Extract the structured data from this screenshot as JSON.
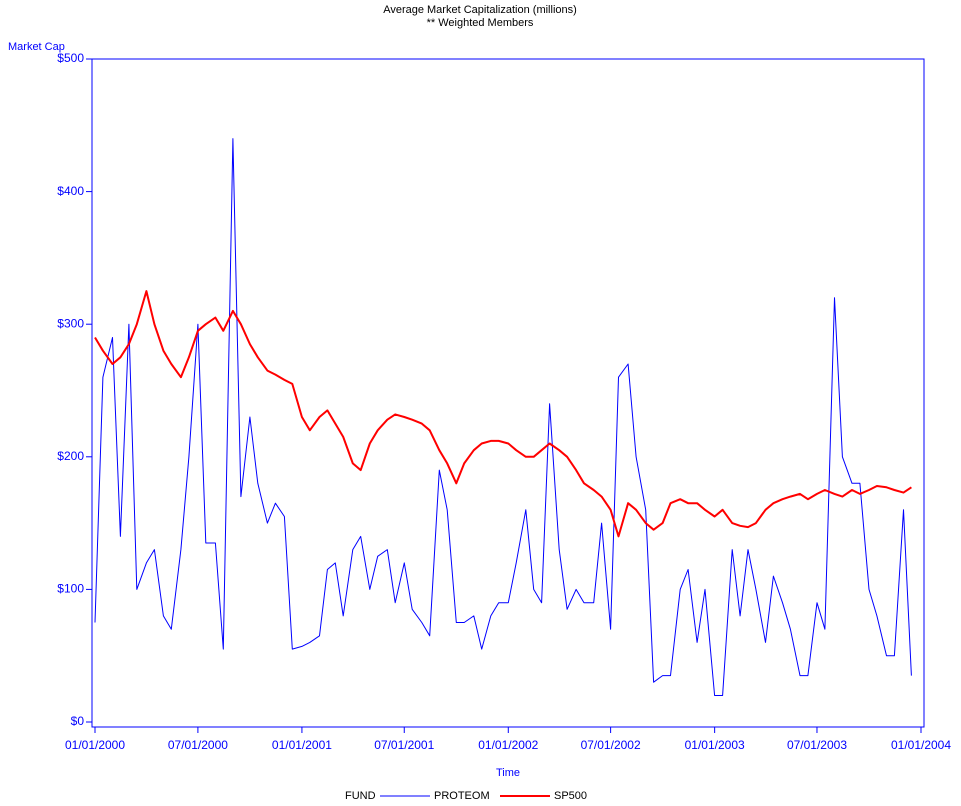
{
  "chart_data": {
    "type": "line",
    "title": "Average Market Capitalization (millions)",
    "subtitle": "** Weighted Members",
    "y_label": "Market Cap",
    "x_label": "Time",
    "legend_title": "FUND",
    "x": [
      "01/01/2000",
      "01/15/2000",
      "02/01/2000",
      "02/15/2000",
      "03/01/2000",
      "03/15/2000",
      "04/01/2000",
      "04/15/2000",
      "05/01/2000",
      "05/15/2000",
      "06/01/2000",
      "06/15/2000",
      "07/01/2000",
      "07/15/2000",
      "08/01/2000",
      "08/15/2000",
      "09/01/2000",
      "09/15/2000",
      "10/01/2000",
      "10/15/2000",
      "11/01/2000",
      "11/15/2000",
      "12/01/2000",
      "12/15/2000",
      "01/01/2001",
      "01/15/2001",
      "02/01/2001",
      "02/15/2001",
      "03/01/2001",
      "03/15/2001",
      "04/01/2001",
      "04/15/2001",
      "05/01/2001",
      "05/15/2001",
      "06/01/2001",
      "06/15/2001",
      "07/01/2001",
      "07/15/2001",
      "08/01/2001",
      "08/15/2001",
      "09/01/2001",
      "09/15/2001",
      "10/01/2001",
      "10/15/2001",
      "11/01/2001",
      "11/15/2001",
      "12/01/2001",
      "12/15/2001",
      "01/01/2002",
      "01/15/2002",
      "02/01/2002",
      "02/15/2002",
      "03/01/2002",
      "03/15/2002",
      "04/01/2002",
      "04/15/2002",
      "05/01/2002",
      "05/15/2002",
      "06/01/2002",
      "06/15/2002",
      "07/01/2002",
      "07/15/2002",
      "08/01/2002",
      "08/15/2002",
      "09/01/2002",
      "09/15/2002",
      "10/01/2002",
      "10/15/2002",
      "11/01/2002",
      "11/15/2002",
      "12/01/2002",
      "12/15/2002",
      "01/01/2003",
      "01/15/2003",
      "02/01/2003",
      "02/15/2003",
      "03/01/2003",
      "03/15/2003",
      "04/01/2003",
      "04/15/2003",
      "05/01/2003",
      "05/15/2003",
      "06/01/2003",
      "06/15/2003",
      "07/01/2003",
      "07/15/2003",
      "08/01/2003",
      "08/15/2003",
      "09/01/2003",
      "09/15/2003",
      "10/01/2003",
      "10/15/2003",
      "11/01/2003",
      "11/15/2003",
      "12/01/2003",
      "12/15/2003"
    ],
    "series": [
      {
        "name": "PROTEOM",
        "color": "#0000ff",
        "width": 1,
        "values": [
          75,
          260,
          290,
          140,
          300,
          100,
          120,
          130,
          80,
          70,
          130,
          200,
          300,
          135,
          135,
          55,
          440,
          170,
          230,
          180,
          150,
          165,
          155,
          55,
          57,
          60,
          65,
          115,
          120,
          80,
          130,
          140,
          100,
          125,
          130,
          90,
          120,
          85,
          75,
          65,
          190,
          160,
          75,
          75,
          80,
          55,
          80,
          90,
          90,
          120,
          160,
          100,
          90,
          240,
          130,
          85,
          100,
          90,
          90,
          150,
          70,
          260,
          270,
          200,
          160,
          30,
          35,
          35,
          100,
          115,
          60,
          100,
          20,
          20,
          130,
          80,
          130,
          100,
          60,
          110,
          90,
          70,
          35,
          35,
          90,
          70,
          320,
          200,
          180,
          180,
          100,
          80,
          50,
          50,
          160,
          35
        ]
      },
      {
        "name": "SP500",
        "color": "#ff0000",
        "width": 2,
        "values": [
          290,
          280,
          270,
          275,
          285,
          300,
          325,
          300,
          280,
          270,
          260,
          275,
          295,
          300,
          305,
          295,
          310,
          300,
          285,
          275,
          265,
          262,
          258,
          255,
          230,
          220,
          230,
          235,
          225,
          215,
          195,
          190,
          210,
          220,
          228,
          232,
          230,
          228,
          225,
          220,
          205,
          195,
          180,
          195,
          205,
          210,
          212,
          212,
          210,
          205,
          200,
          200,
          205,
          210,
          205,
          200,
          190,
          180,
          175,
          170,
          160,
          140,
          165,
          160,
          150,
          145,
          150,
          165,
          168,
          165,
          165,
          160,
          155,
          160,
          150,
          148,
          147,
          150,
          160,
          165,
          168,
          170,
          172,
          168,
          172,
          175,
          172,
          170,
          175,
          172,
          175,
          178,
          177,
          175,
          173,
          177
        ]
      }
    ],
    "xlim": [
      "01/01/2000",
      "01/01/2004"
    ],
    "xticks": [
      "01/01/2000",
      "07/01/2000",
      "01/01/2001",
      "07/01/2001",
      "01/01/2002",
      "07/01/2002",
      "01/01/2003",
      "07/01/2003",
      "01/01/2004"
    ],
    "ylim": [
      0,
      500
    ],
    "yticks": [
      {
        "value": 0,
        "label": "$0"
      },
      {
        "value": 100,
        "label": "$100"
      },
      {
        "value": 200,
        "label": "$200"
      },
      {
        "value": 300,
        "label": "$300"
      },
      {
        "value": 400,
        "label": "$400"
      },
      {
        "value": 500,
        "label": "$500"
      }
    ],
    "axis_color": "#0000ff"
  }
}
